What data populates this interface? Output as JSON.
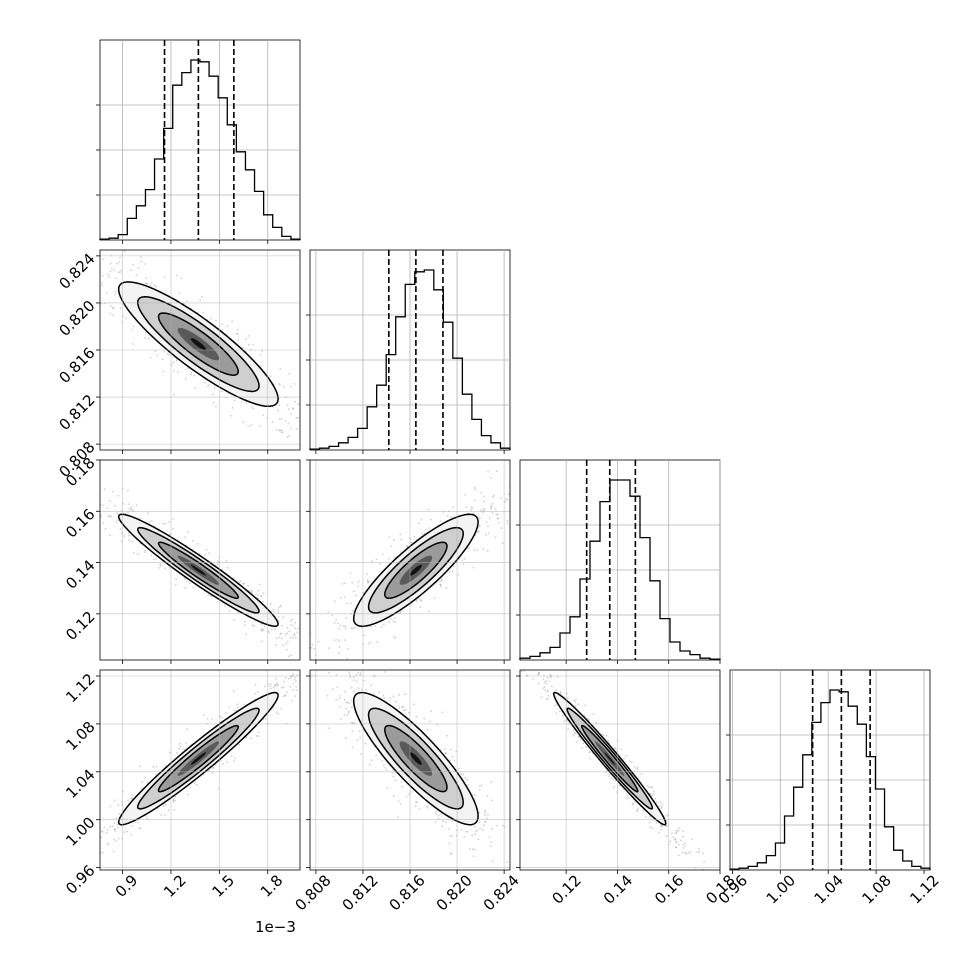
{
  "chart_data": {
    "type": "corner",
    "grid": true,
    "scale_factor_label": "1e−3",
    "parameters": [
      {
        "index": 0,
        "median": 1.37,
        "quantiles": [
          1.16,
          1.37,
          1.59
        ],
        "range": [
          0.76,
          2.0
        ],
        "ticks": [
          0.9,
          1.2,
          1.5,
          1.8
        ],
        "tick_labels": [
          "0.9",
          "1.2",
          "1.5",
          "1.8"
        ],
        "hist_bins": [
          0.005,
          0.01,
          0.03,
          0.12,
          0.19,
          0.28,
          0.45,
          0.62,
          0.86,
          0.93,
          1.0,
          0.99,
          0.91,
          0.79,
          0.64,
          0.49,
          0.39,
          0.27,
          0.14,
          0.07,
          0.02,
          0.005
        ]
      },
      {
        "index": 1,
        "median": 0.8165,
        "quantiles": [
          0.8142,
          0.8165,
          0.8188
        ],
        "range": [
          0.8075,
          0.8245
        ],
        "ticks": [
          0.808,
          0.812,
          0.816,
          0.82,
          0.824
        ],
        "tick_labels": [
          "0.808",
          "0.812",
          "0.816",
          "0.820",
          "0.824"
        ],
        "hist_bins": [
          0.005,
          0.01,
          0.02,
          0.04,
          0.07,
          0.12,
          0.24,
          0.36,
          0.53,
          0.74,
          0.92,
          0.99,
          1.0,
          0.89,
          0.71,
          0.51,
          0.31,
          0.17,
          0.08,
          0.04,
          0.01
        ]
      },
      {
        "index": 2,
        "median": 0.137,
        "quantiles": [
          0.128,
          0.137,
          0.147
        ],
        "range": [
          0.102,
          0.18
        ],
        "ticks": [
          0.12,
          0.14,
          0.16,
          0.18
        ],
        "tick_labels": [
          "0.12",
          "0.14",
          "0.16",
          "0.18"
        ],
        "yticks": [
          0.12,
          0.14,
          0.16,
          0.18
        ],
        "ytick_labels": [
          "0.12",
          "0.14",
          "0.16",
          "0.18"
        ],
        "hist_bins": [
          0.01,
          0.02,
          0.04,
          0.07,
          0.15,
          0.24,
          0.45,
          0.66,
          0.88,
          1.0,
          1.0,
          0.91,
          0.68,
          0.44,
          0.23,
          0.1,
          0.05,
          0.03,
          0.01,
          0.005
        ]
      },
      {
        "index": 3,
        "median": 1.051,
        "quantiles": [
          1.027,
          1.051,
          1.075
        ],
        "range": [
          0.958,
          1.125
        ],
        "ticks": [
          0.96,
          1.0,
          1.04,
          1.08,
          1.12
        ],
        "tick_labels": [
          "0.96",
          "1.00",
          "1.04",
          "1.08",
          "1.12"
        ],
        "hist_bins": [
          0.005,
          0.01,
          0.02,
          0.04,
          0.08,
          0.15,
          0.3,
          0.46,
          0.64,
          0.82,
          0.93,
          1.0,
          0.99,
          0.91,
          0.81,
          0.63,
          0.45,
          0.24,
          0.11,
          0.05,
          0.02,
          0.01
        ]
      }
    ],
    "correlations": [
      {
        "row": 1,
        "col": 0,
        "rho": -0.88
      },
      {
        "row": 2,
        "col": 0,
        "rho": -0.96
      },
      {
        "row": 2,
        "col": 1,
        "rho": 0.86
      },
      {
        "row": 3,
        "col": 0,
        "rho": 0.96
      },
      {
        "row": 3,
        "col": 1,
        "rho": -0.87
      },
      {
        "row": 3,
        "col": 2,
        "rho": -0.98
      }
    ]
  }
}
